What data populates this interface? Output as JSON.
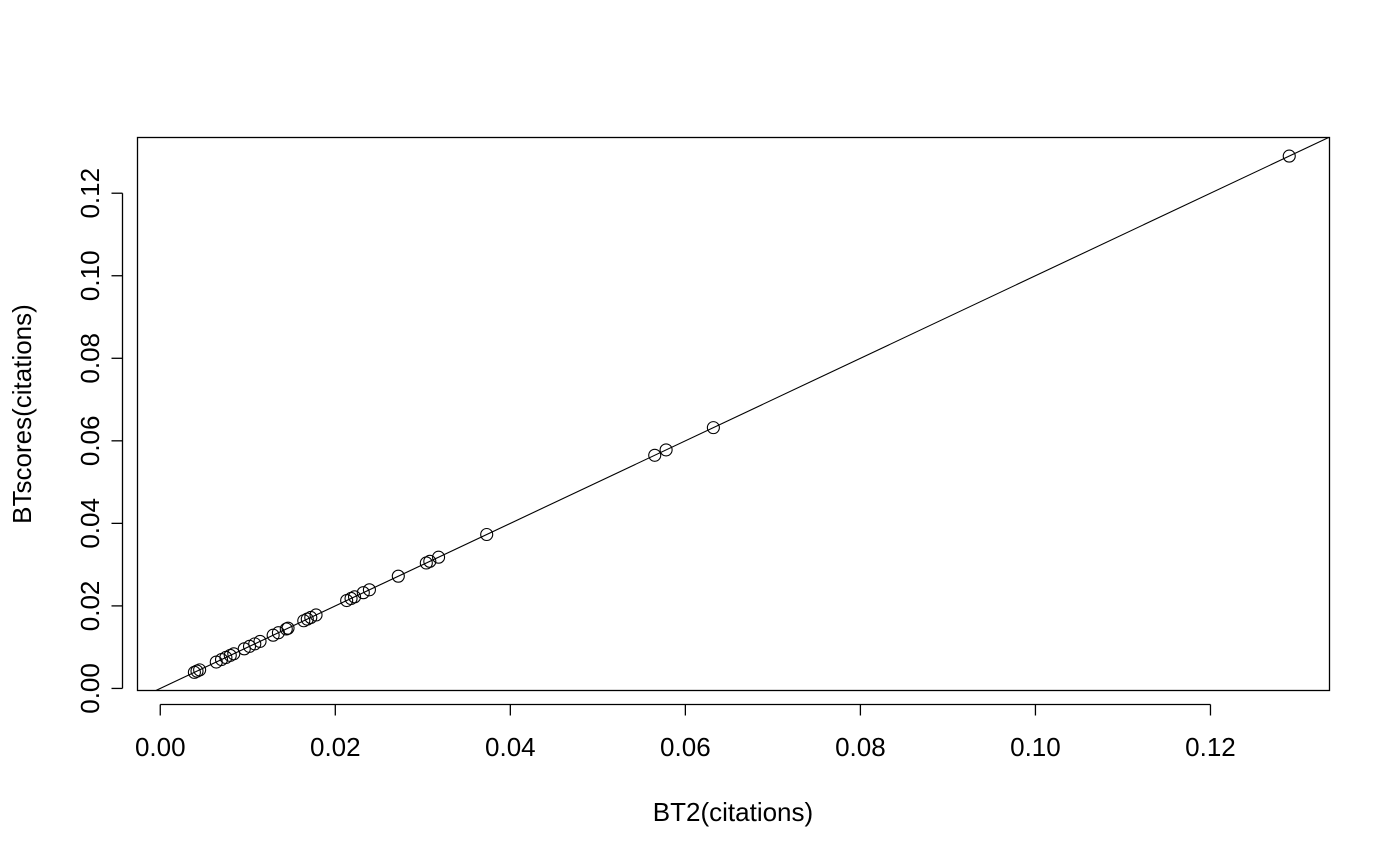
{
  "chart_data": {
    "type": "scatter",
    "title": "",
    "xlabel": "BT2(citations)",
    "ylabel": "BTscores(citations)",
    "xlim": [
      -0.0026,
      0.1336
    ],
    "ylim": [
      -0.0005,
      0.1335
    ],
    "x_ticks": [
      0.0,
      0.02,
      0.04,
      0.06,
      0.08,
      0.1,
      0.12
    ],
    "x_tick_labels": [
      "0.00",
      "0.02",
      "0.04",
      "0.06",
      "0.08",
      "0.10",
      "0.12"
    ],
    "y_ticks": [
      0.0,
      0.02,
      0.04,
      0.06,
      0.08,
      0.1,
      0.12
    ],
    "y_tick_labels": [
      "0.00",
      "0.02",
      "0.04",
      "0.06",
      "0.08",
      "0.10",
      "0.12"
    ],
    "grid": false,
    "legend": "none",
    "marker": "open-circle",
    "reference_line": {
      "type": "abline",
      "intercept": 0,
      "slope": 1
    },
    "colors": {
      "points": "#000000",
      "line": "#000000",
      "frame": "#000000",
      "background": "#ffffff"
    },
    "x": [
      0.0039,
      0.0042,
      0.0045,
      0.0064,
      0.007,
      0.0075,
      0.008,
      0.0084,
      0.0096,
      0.0102,
      0.0108,
      0.0114,
      0.0129,
      0.0135,
      0.0144,
      0.0146,
      0.0164,
      0.0168,
      0.0172,
      0.0178,
      0.0213,
      0.0218,
      0.0222,
      0.0232,
      0.0239,
      0.0272,
      0.0304,
      0.0308,
      0.0318,
      0.0373,
      0.0565,
      0.0578,
      0.0632,
      0.129
    ],
    "y": [
      0.0039,
      0.0042,
      0.0045,
      0.0064,
      0.007,
      0.0075,
      0.008,
      0.0084,
      0.0096,
      0.0102,
      0.0108,
      0.0114,
      0.0129,
      0.0135,
      0.0144,
      0.0146,
      0.0164,
      0.0168,
      0.0172,
      0.0178,
      0.0213,
      0.0218,
      0.0222,
      0.0232,
      0.0239,
      0.0272,
      0.0304,
      0.0308,
      0.0318,
      0.0373,
      0.0565,
      0.0578,
      0.0632,
      0.129
    ]
  }
}
